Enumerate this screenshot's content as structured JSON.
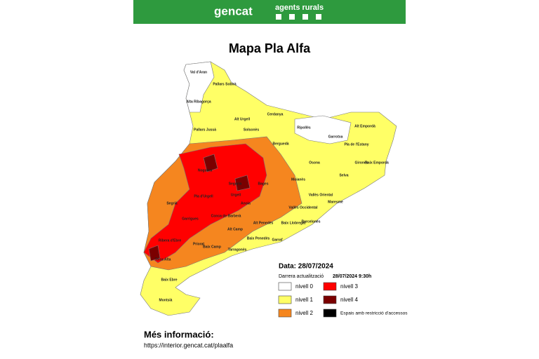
{
  "header": {
    "brand": "gencat",
    "section": "agents rurals"
  },
  "title": "Mapa Pla Alfa",
  "map": {
    "comarques": [
      "Val d'Aran",
      "Alta Ribagorça",
      "Pallars Sobirà",
      "Pallars Jussà",
      "Alt Urgell",
      "Cerdanya",
      "Ripollès",
      "Garrotxa",
      "Alt Empordà",
      "Pla de l'Estany",
      "Gironès",
      "Baix Empordà",
      "Berguedà",
      "Solsonès",
      "Osona",
      "Selva",
      "Noguera",
      "Bages",
      "Moianès",
      "Vallès Oriental",
      "Maresme",
      "Segrià",
      "Pla d'Urgell",
      "Urgell",
      "Segarra",
      "Anoia",
      "Vallès Occidental",
      "Garrigues",
      "Conca de Barberà",
      "Alt Camp",
      "Alt Penedès",
      "Baix Llobregat",
      "Barcelonès",
      "Priorat",
      "Baix Penedès",
      "Garraf",
      "Ribera d'Ebre",
      "Baix Camp",
      "Tarragonès",
      "Terra Alta",
      "Baix Ebre",
      "Montsià"
    ]
  },
  "legend": {
    "date": "Data: 28/07/2024",
    "updated_label": "Darrera actualització",
    "updated": "28/07/2024 9:30h",
    "items": [
      {
        "label": "nivell 0",
        "color": "#ffffff"
      },
      {
        "label": "nivell 1",
        "color": "#ffff66"
      },
      {
        "label": "nivell 2",
        "color": "#f5861f"
      },
      {
        "label": "nivell 3",
        "color": "#ff0000"
      },
      {
        "label": "nivell 4",
        "color": "#7a0000"
      },
      {
        "label": "Espais amb restricció d'accessos",
        "color": "#000000"
      }
    ]
  },
  "footer": {
    "heading": "Més informació:",
    "url": "https://interior.gencat.cat/plaalfa"
  }
}
